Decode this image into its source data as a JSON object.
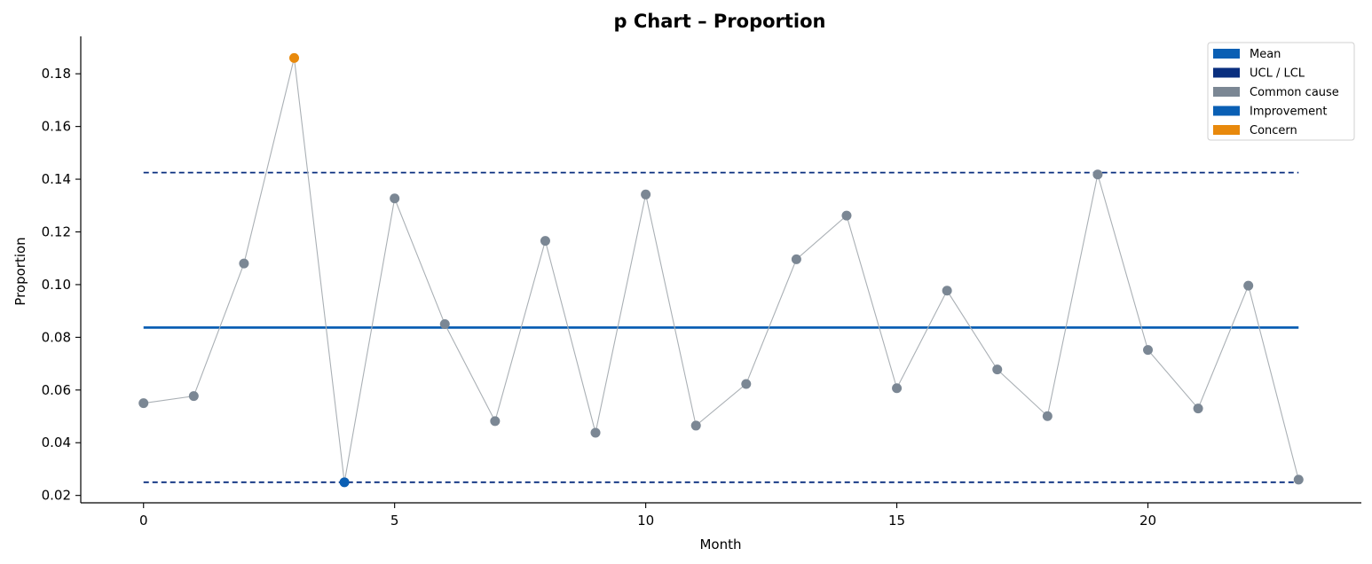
{
  "chart_data": {
    "type": "line",
    "title": "p Chart – Proportion",
    "xlabel": "Month",
    "ylabel": "Proportion",
    "xlim": [
      -1.25,
      24.25
    ],
    "ylim": [
      0.0172,
      0.1942
    ],
    "xticks": [
      0,
      5,
      10,
      15,
      20
    ],
    "yticks": [
      0.02,
      0.04,
      0.06,
      0.08,
      0.1,
      0.12,
      0.14,
      0.16,
      0.18
    ],
    "ytick_labels": [
      "0.02",
      "0.04",
      "0.06",
      "0.08",
      "0.10",
      "0.12",
      "0.14",
      "0.16",
      "0.18"
    ],
    "grid": false,
    "legend_position": "top-right",
    "x": [
      0,
      1,
      2,
      3,
      4,
      5,
      6,
      7,
      8,
      9,
      10,
      11,
      12,
      13,
      14,
      15,
      16,
      17,
      18,
      19,
      20,
      21,
      22,
      23
    ],
    "values": [
      0.055,
      0.0577,
      0.108,
      0.186,
      0.025,
      0.1327,
      0.085,
      0.0482,
      0.1166,
      0.0438,
      0.1342,
      0.0465,
      0.0623,
      0.1096,
      0.1262,
      0.0607,
      0.0977,
      0.0678,
      0.0501,
      0.1418,
      0.0752,
      0.053,
      0.0996,
      0.026
    ],
    "point_class": [
      "common",
      "common",
      "common",
      "concern",
      "improvement",
      "common",
      "common",
      "common",
      "common",
      "common",
      "common",
      "common",
      "common",
      "common",
      "common",
      "common",
      "common",
      "common",
      "common",
      "common",
      "common",
      "common",
      "common",
      "common"
    ],
    "mean": 0.0837,
    "ucl": 0.1425,
    "lcl": 0.025,
    "line_range": [
      0,
      23
    ],
    "legend": [
      {
        "label": "Mean",
        "color": "#0a5fb4"
      },
      {
        "label": "UCL / LCL",
        "color": "#0a2f7f"
      },
      {
        "label": "Common cause",
        "color": "#7b8794"
      },
      {
        "label": "Improvement",
        "color": "#0a5fb4"
      },
      {
        "label": "Concern",
        "color": "#e8890c"
      }
    ],
    "colors": {
      "mean": "#0a5fb4",
      "limits": "#0a2f7f",
      "common": "#7b8794",
      "improvement": "#0a5fb4",
      "concern": "#e8890c",
      "connector": "#aab0b5"
    }
  }
}
